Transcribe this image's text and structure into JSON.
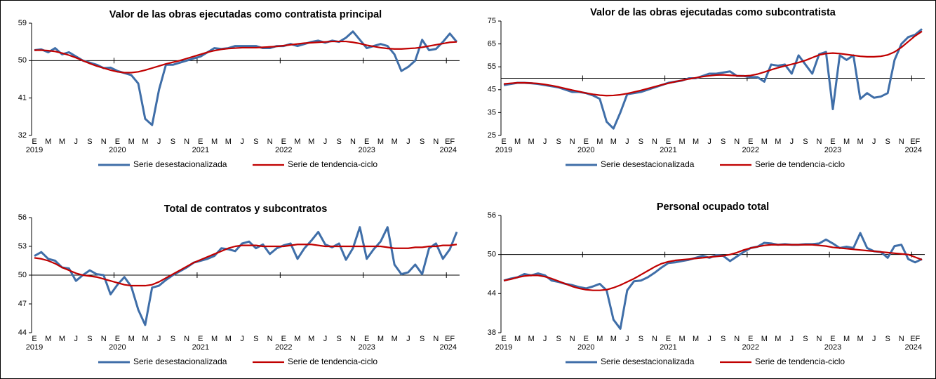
{
  "chart_data": [
    {
      "type": "line",
      "title": "Valor de las obras ejecutadas como contratista principal",
      "categories": [
        "E",
        null,
        "M",
        null,
        "M",
        null,
        "J",
        null,
        "S",
        null,
        "N",
        null,
        "E",
        null,
        "M",
        null,
        "M",
        null,
        "J",
        null,
        "S",
        null,
        "N",
        null,
        "E",
        null,
        "M",
        null,
        "M",
        null,
        "J",
        null,
        "S",
        null,
        "N",
        null,
        "E",
        null,
        "M",
        null,
        "M",
        null,
        "J",
        null,
        "S",
        null,
        "N",
        null,
        "E",
        null,
        "M",
        null,
        "M",
        null,
        "J",
        null,
        "S",
        null,
        "N",
        null,
        "EF",
        null
      ],
      "groups": [
        "2019",
        "2020",
        "2021",
        "2022",
        "2023",
        "2024"
      ],
      "series": [
        {
          "name": "Serie desestacionalizada",
          "color": "#3f6ea8",
          "values": [
            52.5,
            52.7,
            52,
            53,
            51.5,
            52,
            51,
            50,
            49.5,
            49,
            48.2,
            48.3,
            47.5,
            47,
            46.5,
            44.5,
            36,
            34.5,
            43,
            49,
            49,
            49.5,
            50,
            50.5,
            51,
            52,
            53,
            52.8,
            53,
            53.5,
            53.5,
            53.5,
            53.5,
            53,
            53,
            53.5,
            53.5,
            54,
            53.5,
            54,
            54.5,
            54.8,
            54.3,
            54.8,
            54.5,
            55.5,
            57,
            55,
            53,
            53.5,
            54,
            53.5,
            51.5,
            47.5,
            48.5,
            50,
            55,
            52.5,
            52.8,
            54.5,
            56.5,
            54.5
          ]
        },
        {
          "name": "Serie de tendencia-ciclo",
          "color": "#c00000",
          "values": [
            52.5,
            52.5,
            52.4,
            52.2,
            51.8,
            51.3,
            50.7,
            50,
            49.3,
            48.7,
            48.2,
            47.7,
            47.3,
            47.1,
            47.1,
            47.3,
            47.7,
            48.2,
            48.7,
            49.2,
            49.6,
            50,
            50.5,
            51,
            51.5,
            52,
            52.4,
            52.7,
            52.9,
            53,
            53.1,
            53.1,
            53.1,
            53.2,
            53.3,
            53.4,
            53.6,
            53.8,
            54,
            54.2,
            54.3,
            54.4,
            54.5,
            54.6,
            54.6,
            54.6,
            54.4,
            54.1,
            53.7,
            53.4,
            53.1,
            52.9,
            52.8,
            52.8,
            52.9,
            53,
            53.2,
            53.5,
            53.8,
            54.1,
            54.4,
            54.5
          ]
        }
      ],
      "ylim": [
        32,
        59
      ],
      "yticks": [
        32,
        41,
        50,
        59
      ],
      "reference_line": 50
    },
    {
      "type": "line",
      "title": "Valor de las obras ejecutadas como subcontratista",
      "categories": [
        "E",
        null,
        "M",
        null,
        "M",
        null,
        "J",
        null,
        "S",
        null,
        "N",
        null,
        "E",
        null,
        "M",
        null,
        "M",
        null,
        "J",
        null,
        "S",
        null,
        "N",
        null,
        "E",
        null,
        "M",
        null,
        "M",
        null,
        "J",
        null,
        "S",
        null,
        "N",
        null,
        "E",
        null,
        "M",
        null,
        "M",
        null,
        "J",
        null,
        "S",
        null,
        "N",
        null,
        "E",
        null,
        "M",
        null,
        "M",
        null,
        "J",
        null,
        "S",
        null,
        "N",
        null,
        "EF",
        null
      ],
      "groups": [
        "2019",
        "2020",
        "2021",
        "2022",
        "2023",
        "2024"
      ],
      "series": [
        {
          "name": "Serie desestacionalizada",
          "color": "#3f6ea8",
          "values": [
            47,
            47.5,
            48,
            48,
            47.8,
            47.5,
            47,
            46.5,
            46,
            45,
            44,
            44,
            43.5,
            42.5,
            41,
            31,
            28,
            35,
            43,
            43.5,
            44,
            45,
            46,
            47,
            48,
            48.5,
            49,
            50,
            50,
            51,
            52,
            52,
            52.5,
            53,
            51,
            51,
            50.5,
            50.5,
            48.5,
            56,
            55.5,
            56,
            52,
            60,
            56,
            52,
            60.5,
            61.5,
            36.5,
            60,
            58,
            60,
            41,
            43.5,
            41.5,
            42,
            43.5,
            58,
            65,
            68,
            69,
            71.5
          ]
        },
        {
          "name": "Serie de tendencia-ciclo",
          "color": "#c00000",
          "values": [
            47.5,
            47.8,
            48,
            48,
            47.9,
            47.7,
            47.3,
            46.8,
            46.2,
            45.5,
            44.8,
            44.2,
            43.5,
            43,
            42.6,
            42.4,
            42.5,
            42.8,
            43.3,
            44,
            44.7,
            45.5,
            46.3,
            47.1,
            47.8,
            48.5,
            49.1,
            49.7,
            50.2,
            50.7,
            51.1,
            51.4,
            51.5,
            51.3,
            51.1,
            51,
            51.2,
            51.8,
            52.7,
            53.7,
            54.6,
            55.4,
            56.1,
            56.9,
            57.8,
            59,
            60.2,
            60.8,
            61,
            60.8,
            60.4,
            60,
            59.6,
            59.4,
            59.4,
            59.6,
            60.2,
            61.5,
            63.5,
            66,
            68.5,
            70.5
          ]
        }
      ],
      "ylim": [
        25,
        75
      ],
      "yticks": [
        25,
        35,
        45,
        55,
        65,
        75
      ],
      "reference_line": 50
    },
    {
      "type": "line",
      "title": "Total de contratos y subcontratos",
      "categories": [
        "E",
        null,
        "M",
        null,
        "M",
        null,
        "J",
        null,
        "S",
        null,
        "N",
        null,
        "E",
        null,
        "M",
        null,
        "M",
        null,
        "J",
        null,
        "S",
        null,
        "N",
        null,
        "E",
        null,
        "M",
        null,
        "M",
        null,
        "J",
        null,
        "S",
        null,
        "N",
        null,
        "E",
        null,
        "M",
        null,
        "M",
        null,
        "J",
        null,
        "S",
        null,
        "N",
        null,
        "E",
        null,
        "M",
        null,
        "M",
        null,
        "J",
        null,
        "S",
        null,
        "N",
        null,
        "EF",
        null
      ],
      "groups": [
        "2019",
        "2020",
        "2021",
        "2022",
        "2023",
        "2024"
      ],
      "series": [
        {
          "name": "Serie desestacionalizada",
          "color": "#3f6ea8",
          "values": [
            52,
            52.4,
            51.7,
            51.5,
            50.8,
            50.7,
            49.4,
            50,
            50.5,
            50.1,
            50,
            48,
            49,
            49.8,
            48.8,
            46.4,
            44.8,
            48.7,
            48.9,
            49.5,
            50,
            50.4,
            50.8,
            51.3,
            51.5,
            51.7,
            52,
            52.8,
            52.7,
            52.5,
            53.3,
            53.5,
            52.8,
            53.2,
            52.2,
            52.8,
            53.1,
            53.3,
            51.7,
            52.8,
            53.6,
            54.5,
            53.2,
            52.9,
            53.3,
            51.6,
            52.8,
            55,
            51.7,
            52.7,
            53.5,
            55,
            51.1,
            50.1,
            50.3,
            51.1,
            50.1,
            52.8,
            53.3,
            51.7,
            52.7,
            54.5
          ]
        },
        {
          "name": "Serie de tendencia-ciclo",
          "color": "#c00000",
          "values": [
            51.8,
            51.7,
            51.5,
            51.2,
            50.8,
            50.5,
            50.2,
            50,
            49.9,
            49.8,
            49.6,
            49.4,
            49.2,
            49,
            48.9,
            48.9,
            48.9,
            49,
            49.3,
            49.7,
            50.1,
            50.5,
            50.9,
            51.3,
            51.6,
            51.9,
            52.2,
            52.5,
            52.8,
            53,
            53.1,
            53.1,
            53.1,
            53,
            53,
            53,
            53,
            53.1,
            53.2,
            53.2,
            53.2,
            53.1,
            53,
            53,
            53,
            53,
            53,
            53,
            53,
            53,
            53,
            52.9,
            52.8,
            52.8,
            52.8,
            52.9,
            52.9,
            53,
            53,
            53.1,
            53.1,
            53.2
          ]
        }
      ],
      "ylim": [
        44,
        56
      ],
      "yticks": [
        44,
        47,
        50,
        53,
        56
      ],
      "reference_line": 50
    },
    {
      "type": "line",
      "title": "Personal ocupado total",
      "categories": [
        "E",
        null,
        "M",
        null,
        "M",
        null,
        "J",
        null,
        "S",
        null,
        "N",
        null,
        "E",
        null,
        "M",
        null,
        "M",
        null,
        "J",
        null,
        "S",
        null,
        "N",
        null,
        "E",
        null,
        "M",
        null,
        "M",
        null,
        "J",
        null,
        "S",
        null,
        "N",
        null,
        "E",
        null,
        "M",
        null,
        "M",
        null,
        "J",
        null,
        "S",
        null,
        "N",
        null,
        "E",
        null,
        "M",
        null,
        "M",
        null,
        "J",
        null,
        "S",
        null,
        "N",
        null,
        "EF",
        null
      ],
      "groups": [
        "2019",
        "2020",
        "2021",
        "2022",
        "2023",
        "2024"
      ],
      "series": [
        {
          "name": "Serie desestacionalizada",
          "color": "#3f6ea8",
          "values": [
            46,
            46.3,
            46.5,
            47,
            46.8,
            47.1,
            46.8,
            46,
            45.8,
            45.5,
            45.3,
            45,
            44.8,
            45.1,
            45.5,
            44.5,
            40,
            38.6,
            44.5,
            45.9,
            46,
            46.5,
            47.2,
            48,
            48.7,
            48.8,
            49,
            49.2,
            49.5,
            49.8,
            49.5,
            49.9,
            49.8,
            49,
            49.7,
            50.4,
            51,
            51.2,
            51.8,
            51.7,
            51.5,
            51.6,
            51.5,
            51.5,
            51.6,
            51.6,
            51.7,
            52.3,
            51.7,
            51,
            51.2,
            51,
            53.3,
            51,
            50.5,
            50.4,
            49.5,
            51.3,
            51.5,
            49.3,
            48.8,
            49.3
          ]
        },
        {
          "name": "Serie de tendencia-ciclo",
          "color": "#c00000",
          "values": [
            46,
            46.2,
            46.5,
            46.7,
            46.8,
            46.8,
            46.6,
            46.3,
            45.9,
            45.5,
            45.1,
            44.8,
            44.6,
            44.5,
            44.5,
            44.6,
            44.9,
            45.3,
            45.8,
            46.3,
            46.9,
            47.5,
            48.1,
            48.6,
            48.9,
            49.1,
            49.2,
            49.3,
            49.4,
            49.5,
            49.6,
            49.7,
            49.8,
            50,
            50.3,
            50.7,
            51,
            51.2,
            51.4,
            51.5,
            51.5,
            51.5,
            51.5,
            51.5,
            51.5,
            51.5,
            51.4,
            51.3,
            51.1,
            51,
            50.9,
            50.8,
            50.7,
            50.6,
            50.5,
            50.4,
            50.3,
            50.2,
            50.1,
            50,
            49.6,
            49.2
          ]
        }
      ],
      "ylim": [
        38,
        56
      ],
      "yticks": [
        38,
        44,
        50,
        56
      ],
      "reference_line": 50
    }
  ]
}
